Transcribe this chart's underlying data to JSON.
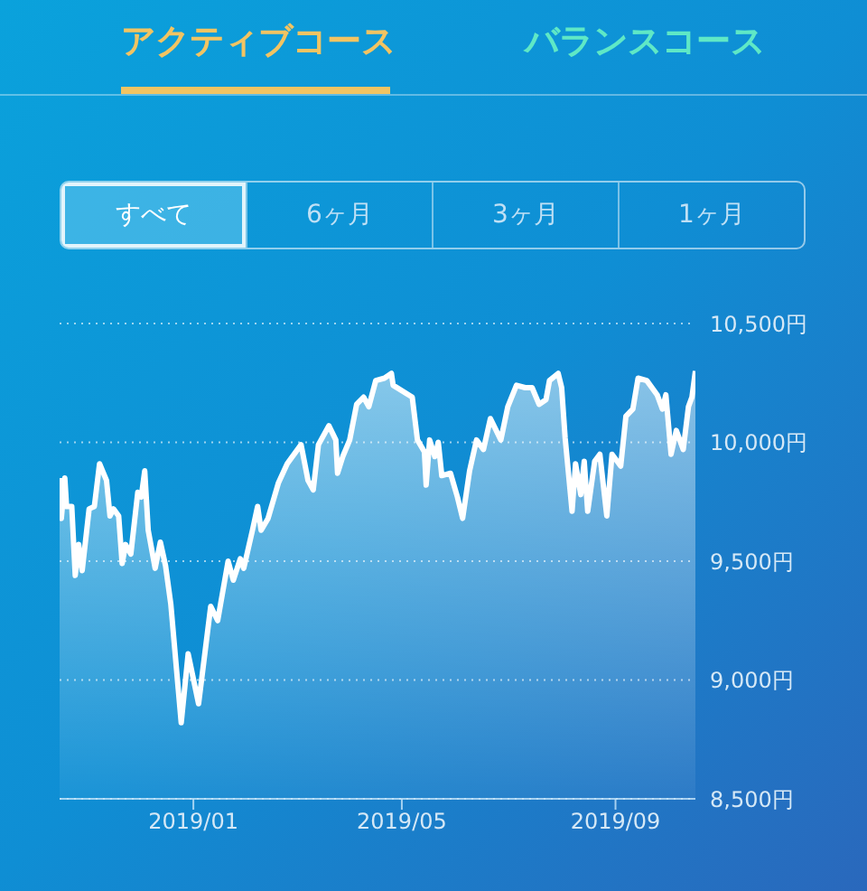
{
  "chart_data": {
    "type": "area",
    "annotations": [
      "アクティブコース",
      "バランスコース",
      "すべて",
      "6ヶ月",
      "3ヶ月",
      "1ヶ月"
    ],
    "x": [
      "2018-10-16",
      "2018-10-17",
      "2018-10-19",
      "2018-10-20",
      "2018-10-23",
      "2018-10-25",
      "2018-10-27",
      "2018-10-29",
      "2018-11-02",
      "2018-11-05",
      "2018-11-08",
      "2018-11-12",
      "2018-11-14",
      "2018-11-16",
      "2018-11-19",
      "2018-11-21",
      "2018-11-23",
      "2018-11-26",
      "2018-11-30",
      "2018-12-02",
      "2018-12-04",
      "2018-12-06",
      "2018-12-10",
      "2018-12-13",
      "2018-12-16",
      "2018-12-19",
      "2018-12-25",
      "2018-12-29",
      "2019-01-04",
      "2019-01-11",
      "2019-01-15",
      "2019-01-21",
      "2019-01-24",
      "2019-01-28",
      "2019-01-30",
      "2019-02-04",
      "2019-02-07",
      "2019-02-09",
      "2019-02-13",
      "2019-02-19",
      "2019-02-24",
      "2019-03-04",
      "2019-03-08",
      "2019-03-11",
      "2019-03-14",
      "2019-03-20",
      "2019-03-24",
      "2019-03-25",
      "2019-03-28",
      "2019-04-01",
      "2019-04-05",
      "2019-04-09",
      "2019-04-12",
      "2019-04-16",
      "2019-04-21",
      "2019-04-25",
      "2019-04-26",
      "2019-05-07",
      "2019-05-10",
      "2019-05-14",
      "2019-05-15",
      "2019-05-17",
      "2019-05-20",
      "2019-05-22",
      "2019-05-24",
      "2019-05-29",
      "2019-06-02",
      "2019-06-05",
      "2019-06-09",
      "2019-06-13",
      "2019-06-17",
      "2019-06-21",
      "2019-06-27",
      "2019-07-01",
      "2019-07-06",
      "2019-07-11",
      "2019-07-15",
      "2019-07-19",
      "2019-07-23",
      "2019-07-25",
      "2019-07-30",
      "2019-08-01",
      "2019-08-03",
      "2019-08-07",
      "2019-08-09",
      "2019-08-12",
      "2019-08-14",
      "2019-08-16",
      "2019-08-20",
      "2019-08-23",
      "2019-08-27",
      "2019-08-30",
      "2019-09-04",
      "2019-09-07",
      "2019-09-11",
      "2019-09-14",
      "2019-09-19",
      "2019-09-25",
      "2019-09-28",
      "2019-09-30",
      "2019-10-03",
      "2019-10-06",
      "2019-10-10",
      "2019-10-13",
      "2019-10-15",
      "2019-10-17"
    ],
    "series": [
      {
        "color": "#ffffff",
        "values": [
          9850,
          9680,
          9850,
          9730,
          9730,
          9440,
          9570,
          9460,
          9720,
          9730,
          9910,
          9840,
          9690,
          9720,
          9690,
          9490,
          9570,
          9530,
          9790,
          9770,
          9880,
          9630,
          9470,
          9580,
          9480,
          9320,
          8820,
          9110,
          8900,
          9310,
          9250,
          9500,
          9420,
          9510,
          9470,
          9630,
          9730,
          9630,
          9680,
          9830,
          9910,
          9990,
          9840,
          9800,
          9990,
          10070,
          10010,
          9870,
          9940,
          10010,
          10160,
          10190,
          10150,
          10260,
          10270,
          10290,
          10240,
          10190,
          10010,
          9960,
          9820,
          10010,
          9940,
          10000,
          9860,
          9870,
          9770,
          9680,
          9880,
          10010,
          9970,
          10100,
          10010,
          10150,
          10240,
          10230,
          10230,
          10160,
          10180,
          10260,
          10290,
          10230,
          10020,
          9710,
          9910,
          9780,
          9920,
          9710,
          9920,
          9950,
          9690,
          9950,
          9900,
          10110,
          10140,
          10270,
          10260,
          10200,
          10140,
          10200,
          9950,
          10050,
          9970,
          10150,
          10190,
          10300
        ]
      }
    ],
    "xlim": [
      "2018-10-16",
      "2019-10-17"
    ],
    "xticks": [
      {
        "value": "2019-01-01",
        "label": "2019/01"
      },
      {
        "value": "2019-05-01",
        "label": "2019/05"
      },
      {
        "value": "2019-09-01",
        "label": "2019/09"
      }
    ],
    "ylim": [
      8500,
      10500
    ],
    "yticks": [
      {
        "value": 8500,
        "label": "8,500円"
      },
      {
        "value": 9000,
        "label": "9,000円"
      },
      {
        "value": 9500,
        "label": "9,500円"
      },
      {
        "value": 10000,
        "label": "10,000円"
      },
      {
        "value": 10500,
        "label": "10,500円"
      }
    ],
    "grid": "y",
    "legend": false,
    "marker": "none",
    "line_style": "solid"
  }
}
